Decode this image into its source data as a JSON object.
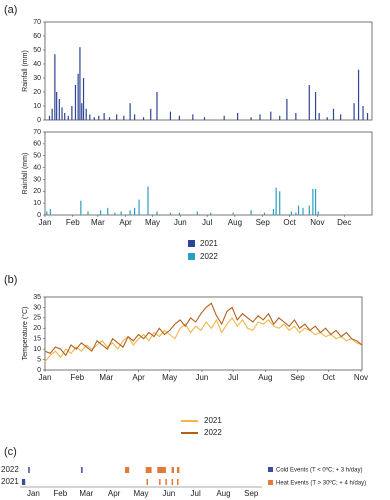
{
  "chart_data": [
    {
      "type": "bar",
      "title": "(a)",
      "ylabel": "Rainfall (mm)",
      "xlim": [
        0,
        365
      ],
      "ylim": [
        0,
        70
      ],
      "yticks": [
        0,
        10,
        20,
        30,
        40,
        50,
        60,
        70
      ],
      "xticks": [
        {
          "value": 0,
          "label": "Jan"
        },
        {
          "value": 31,
          "label": "Feb"
        },
        {
          "value": 59,
          "label": "Mar"
        },
        {
          "value": 90,
          "label": "Apr"
        },
        {
          "value": 120,
          "label": "May"
        },
        {
          "value": 151,
          "label": "Jun"
        },
        {
          "value": 181,
          "label": "Jul"
        },
        {
          "value": 212,
          "label": "Aug"
        },
        {
          "value": 243,
          "label": "Sep"
        },
        {
          "value": 273,
          "label": "Oct"
        },
        {
          "value": 304,
          "label": "Nov"
        },
        {
          "value": 334,
          "label": "Dec"
        }
      ],
      "series": [
        {
          "name": "2021",
          "color": "#2e4593",
          "x": [
            5,
            8,
            11,
            13,
            16,
            19,
            22,
            26,
            30,
            34,
            37,
            39,
            41,
            43,
            46,
            50,
            55,
            60,
            66,
            72,
            80,
            88,
            95,
            100,
            110,
            118,
            125,
            140,
            150,
            165,
            178,
            200,
            215,
            230,
            240,
            252,
            262,
            270,
            280,
            295,
            302,
            306,
            315,
            322,
            330,
            345,
            350,
            355,
            360
          ],
          "values": [
            3,
            8,
            47,
            20,
            15,
            9,
            5,
            3,
            10,
            25,
            33,
            52,
            12,
            30,
            8,
            4,
            2,
            3,
            5,
            2,
            4,
            3,
            12,
            4,
            2,
            8,
            20,
            6,
            3,
            4,
            2,
            3,
            5,
            2,
            4,
            6,
            3,
            15,
            5,
            25,
            20,
            5,
            2,
            8,
            4,
            12,
            36,
            10,
            5
          ]
        },
        {
          "name": "2022",
          "color": "#2a9fc6",
          "x": [
            2,
            6,
            40,
            48,
            62,
            70,
            78,
            85,
            95,
            100,
            105,
            115,
            125,
            140,
            150,
            170,
            185,
            210,
            230,
            245,
            255,
            258,
            262,
            275,
            280,
            283,
            288,
            295,
            299,
            302,
            305
          ],
          "values": [
            3,
            5,
            12,
            3,
            4,
            6,
            2,
            3,
            4,
            6,
            13,
            24,
            3,
            2,
            2,
            3,
            2,
            2,
            4,
            2,
            5,
            23,
            20,
            3,
            2,
            8,
            6,
            8,
            22,
            22,
            3
          ]
        }
      ]
    },
    {
      "type": "line",
      "title": "(b)",
      "ylabel": "Temperature (°C)",
      "xlim": [
        0,
        305
      ],
      "ylim": [
        0,
        35
      ],
      "yticks": [
        0,
        5,
        10,
        15,
        20,
        25,
        30,
        35
      ],
      "xticks": [
        {
          "value": 0,
          "label": "Jan"
        },
        {
          "value": 31,
          "label": "Feb"
        },
        {
          "value": 59,
          "label": "Mar"
        },
        {
          "value": 90,
          "label": "Apr"
        },
        {
          "value": 120,
          "label": "May"
        },
        {
          "value": 151,
          "label": "Jun"
        },
        {
          "value": 181,
          "label": "Jul"
        },
        {
          "value": 212,
          "label": "Aug"
        },
        {
          "value": 243,
          "label": "Sep"
        },
        {
          "value": 273,
          "label": "Oct"
        },
        {
          "value": 304,
          "label": "Nov"
        }
      ],
      "series": [
        {
          "name": "2021",
          "color": "#f0b84a",
          "x": [
            0,
            5,
            10,
            15,
            20,
            25,
            30,
            35,
            40,
            45,
            50,
            55,
            60,
            65,
            70,
            75,
            80,
            85,
            90,
            95,
            100,
            105,
            110,
            115,
            120,
            125,
            130,
            135,
            140,
            145,
            150,
            155,
            160,
            165,
            170,
            175,
            180,
            185,
            190,
            195,
            200,
            205,
            210,
            215,
            220,
            225,
            230,
            235,
            240,
            245,
            250,
            255,
            260,
            265,
            270,
            275,
            280,
            285,
            290,
            295,
            300,
            305
          ],
          "values": [
            4,
            7,
            9,
            6,
            10,
            8,
            11,
            9,
            12,
            10,
            12,
            14,
            11,
            13,
            10,
            14,
            16,
            12,
            15,
            17,
            14,
            18,
            16,
            19,
            17,
            15,
            20,
            22,
            18,
            21,
            19,
            23,
            20,
            24,
            18,
            22,
            25,
            21,
            24,
            20,
            19,
            23,
            22,
            24,
            21,
            20,
            22,
            19,
            21,
            18,
            20,
            19,
            17,
            18,
            16,
            17,
            15,
            16,
            14,
            15,
            13,
            12
          ]
        },
        {
          "name": "2022",
          "color": "#b2601e",
          "x": [
            0,
            5,
            10,
            15,
            20,
            25,
            30,
            35,
            40,
            45,
            50,
            55,
            60,
            65,
            70,
            75,
            80,
            85,
            90,
            95,
            100,
            105,
            110,
            115,
            120,
            125,
            130,
            135,
            140,
            145,
            150,
            155,
            160,
            165,
            170,
            175,
            180,
            185,
            190,
            195,
            200,
            205,
            210,
            215,
            220,
            225,
            230,
            235,
            240,
            245,
            250,
            255,
            260,
            265,
            270,
            275,
            280,
            285,
            290,
            295,
            300,
            305
          ],
          "values": [
            9,
            8,
            11,
            10,
            7,
            12,
            10,
            13,
            11,
            9,
            14,
            12,
            10,
            15,
            13,
            11,
            16,
            14,
            17,
            15,
            18,
            16,
            20,
            17,
            19,
            22,
            24,
            21,
            25,
            23,
            27,
            30,
            32,
            26,
            22,
            28,
            30,
            24,
            27,
            25,
            23,
            26,
            24,
            27,
            22,
            25,
            23,
            21,
            24,
            20,
            22,
            19,
            21,
            18,
            20,
            17,
            19,
            16,
            18,
            15,
            14,
            12
          ]
        }
      ]
    },
    {
      "type": "timeline",
      "title": "(c)",
      "categories": [
        "2022",
        "2021"
      ],
      "xlim": [
        0,
        270
      ],
      "xticks": [
        {
          "value": 15,
          "label": "Jan"
        },
        {
          "value": 45,
          "label": "Feb"
        },
        {
          "value": 74,
          "label": "Mar"
        },
        {
          "value": 105,
          "label": "Apr"
        },
        {
          "value": 135,
          "label": "May"
        },
        {
          "value": 166,
          "label": "Jun"
        },
        {
          "value": 196,
          "label": "Jul"
        },
        {
          "value": 227,
          "label": "Aug"
        },
        {
          "value": 258,
          "label": "Sep"
        }
      ],
      "series": [
        {
          "name": "Cold Events (T < 0ºC; + 3 h/day)",
          "color": "#3a4fa0",
          "x": [
            [
              10,
              69
            ],
            [
              3,
              4,
              5
            ]
          ]
        },
        {
          "name": "Heat Events (T > 30ºC; + 4 h/day)",
          "color": "#e07b39",
          "x": [
            [
              118,
              119,
              120,
              121,
              141,
              142,
              143,
              144,
              145,
              146,
              154,
              155,
              156,
              157,
              158,
              159,
              160,
              161,
              162,
              170,
              171,
              176,
              177
            ],
            [
              142,
              156,
              163,
              170,
              176
            ]
          ]
        }
      ]
    }
  ]
}
